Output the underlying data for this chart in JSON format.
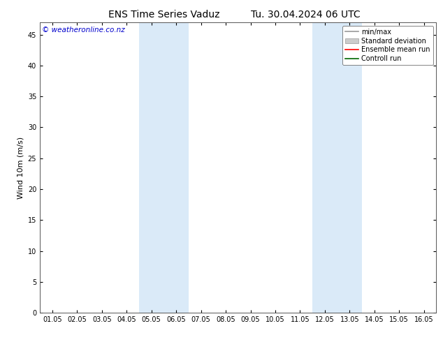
{
  "title_left": "ENS Time Series Vaduz",
  "title_right": "Tu. 30.04.2024 06 UTC",
  "ylabel": "Wind 10m (m/s)",
  "watermark": "© weatheronline.co.nz",
  "ylim": [
    0,
    47
  ],
  "yticks": [
    0,
    5,
    10,
    15,
    20,
    25,
    30,
    35,
    40,
    45
  ],
  "xtick_labels": [
    "01.05",
    "02.05",
    "03.05",
    "04.05",
    "05.05",
    "06.05",
    "07.05",
    "08.05",
    "09.05",
    "10.05",
    "11.05",
    "12.05",
    "13.05",
    "14.05",
    "15.05",
    "16.05"
  ],
  "xtick_positions": [
    0,
    1,
    2,
    3,
    4,
    5,
    6,
    7,
    8,
    9,
    10,
    11,
    12,
    13,
    14,
    15
  ],
  "xlim": [
    -0.5,
    15.5
  ],
  "shaded_bands": [
    {
      "xmin": 3.5,
      "xmax": 5.5,
      "color": "#daeaf8"
    },
    {
      "xmin": 10.5,
      "xmax": 12.5,
      "color": "#daeaf8"
    }
  ],
  "legend_entries": [
    {
      "label": "min/max",
      "color": "#999999",
      "type": "hline"
    },
    {
      "label": "Standard deviation",
      "color": "#cccccc",
      "type": "hfill"
    },
    {
      "label": "Ensemble mean run",
      "color": "#ff0000",
      "type": "hline"
    },
    {
      "label": "Controll run",
      "color": "#006600",
      "type": "hline"
    }
  ],
  "background_color": "#ffffff",
  "plot_bg_color": "#ffffff",
  "border_color": "#555555",
  "title_fontsize": 10,
  "axis_label_fontsize": 8,
  "tick_fontsize": 7,
  "watermark_color": "#0000cc",
  "watermark_fontsize": 7.5,
  "legend_fontsize": 7
}
